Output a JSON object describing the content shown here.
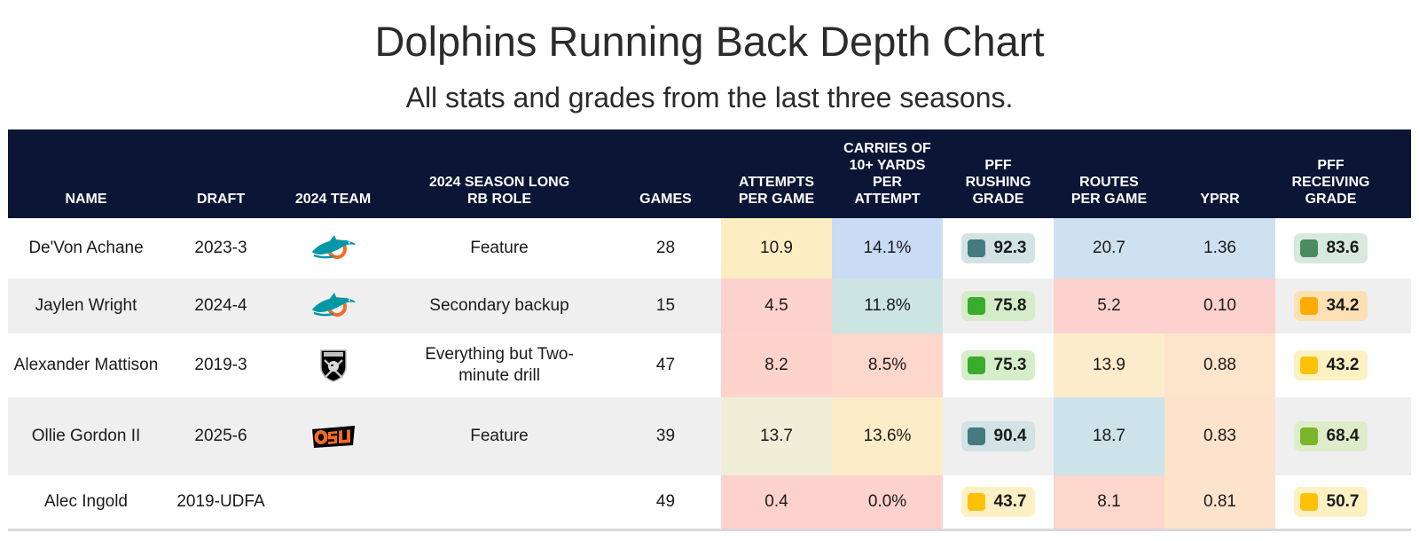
{
  "title": "Dolphins Running Back Depth Chart",
  "subtitle": "All stats and grades from the last three seasons.",
  "columns": {
    "name": "NAME",
    "draft": "DRAFT",
    "team": "2024 TEAM",
    "role": "2024 SEASON LONG RB ROLE",
    "games": "GAMES",
    "attempts": "ATTEMPTS PER GAME",
    "carries": "CARRIES OF 10+ YARDS PER ATTEMPT",
    "rushing_grade": "PFF RUSHING GRADE",
    "routes": "ROUTES PER GAME",
    "yprr": "YPRR",
    "receiving_grade": "PFF RECEIVING GRADE"
  },
  "rows": [
    {
      "name": "De'Von Achane",
      "draft": "2023-3",
      "team_logo": "dolphins-logo",
      "role": "Feature",
      "games": "28",
      "attempts": "10.9",
      "carries": "14.1%",
      "rushing_grade": "92.3",
      "routes": "20.7",
      "yprr": "1.36",
      "receiving_grade": "83.6",
      "colors": {
        "attempts": "#fdedc2",
        "carries": "#c9dbf5",
        "rush_bg": "#d3e2e4",
        "rush_sw": "#447a80",
        "routes": "#cfe0f0",
        "yprr": "#cfe0f0",
        "rec_bg": "#d6e9dc",
        "rec_sw": "#4a8c5f"
      }
    },
    {
      "name": "Jaylen Wright",
      "draft": "2024-4",
      "team_logo": "dolphins-logo",
      "role": "Secondary backup",
      "games": "15",
      "attempts": "4.5",
      "carries": "11.8%",
      "rushing_grade": "75.8",
      "routes": "5.2",
      "yprr": "0.10",
      "receiving_grade": "34.2",
      "colors": {
        "attempts": "#fdd1cd",
        "carries": "#cce4e2",
        "rush_bg": "#d4ecc8",
        "rush_sw": "#3aac2c",
        "routes": "#fdd1cd",
        "yprr": "#fdd1cd",
        "rec_bg": "#fde0b4",
        "rec_sw": "#ffab00"
      }
    },
    {
      "name": "Alexander Mattison",
      "draft": "2019-3",
      "team_logo": "raiders-logo",
      "role": "Everything but Two-minute drill",
      "games": "47",
      "attempts": "8.2",
      "carries": "8.5%",
      "rushing_grade": "75.3",
      "routes": "13.9",
      "yprr": "0.88",
      "receiving_grade": "43.2",
      "colors": {
        "attempts": "#fdd3cc",
        "carries": "#fdd6cc",
        "rush_bg": "#d5edc9",
        "rush_sw": "#3aac2c",
        "routes": "#fdeccb",
        "yprr": "#fde5cc",
        "rec_bg": "#fdf1c4",
        "rec_sw": "#ffc107"
      }
    },
    {
      "name": "Ollie Gordon II",
      "draft": "2025-6",
      "team_logo": "osu-logo",
      "role": "Feature",
      "games": "39",
      "attempts": "13.7",
      "carries": "13.6%",
      "rushing_grade": "90.4",
      "routes": "18.7",
      "yprr": "0.83",
      "receiving_grade": "68.4",
      "colors": {
        "attempts": "#eeefd6",
        "carries": "#fdecc8",
        "rush_bg": "#d3e2e4",
        "rush_sw": "#447a80",
        "routes": "#cce3ea",
        "yprr": "#fde3cc",
        "rec_bg": "#deedc9",
        "rec_sw": "#7ab52a"
      }
    },
    {
      "name": "Alec Ingold",
      "draft": "2019-UDFA",
      "team_logo": "",
      "role": "",
      "games": "49",
      "attempts": "0.4",
      "carries": "0.0%",
      "rushing_grade": "43.7",
      "routes": "8.1",
      "yprr": "0.81",
      "receiving_grade": "50.7",
      "colors": {
        "attempts": "#fdd1cd",
        "carries": "#fdd1cd",
        "rush_bg": "#fdf1c4",
        "rush_sw": "#ffc107",
        "routes": "#fdd6cc",
        "yprr": "#fde3cc",
        "rec_bg": "#fdf1c4",
        "rec_sw": "#ffc107"
      }
    }
  ]
}
